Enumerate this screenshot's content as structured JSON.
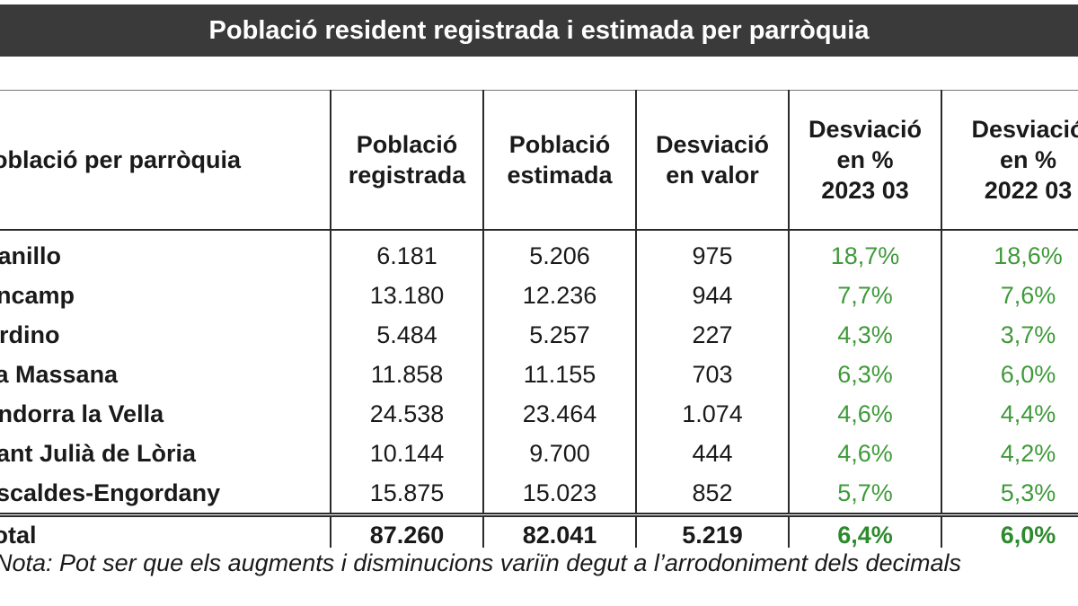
{
  "title": "Població resident registrada i estimada per parròquia",
  "chart_data": {
    "type": "table",
    "title": "Població resident registrada i estimada per parròquia",
    "columns": [
      "Població per parròquia",
      [
        "Població",
        "registrada"
      ],
      [
        "Població",
        "estimada"
      ],
      [
        "Desviació",
        "en valor"
      ],
      [
        "Desviació",
        "en %",
        "2023 03"
      ],
      [
        "Desviació",
        "en %",
        "2022 03"
      ]
    ],
    "rows": [
      [
        "Canillo",
        "6.181",
        "5.206",
        "975",
        "18,7%",
        "18,6%"
      ],
      [
        "Encamp",
        "13.180",
        "12.236",
        "944",
        "7,7%",
        "7,6%"
      ],
      [
        "Ordino",
        "5.484",
        "5.257",
        "227",
        "4,3%",
        "3,7%"
      ],
      [
        "La Massana",
        "11.858",
        "11.155",
        "703",
        "6,3%",
        "6,0%"
      ],
      [
        "Andorra la Vella",
        "24.538",
        "23.464",
        "1.074",
        "4,6%",
        "4,4%"
      ],
      [
        "Sant Julià de Lòria",
        "10.144",
        "9.700",
        "444",
        "4,6%",
        "4,2%"
      ],
      [
        "Escaldes-Engordany",
        "15.875",
        "15.023",
        "852",
        "5,7%",
        "5,3%"
      ]
    ],
    "total": [
      "Total",
      "87.260",
      "82.041",
      "5.219",
      "6,4%",
      "6,0%"
    ],
    "note": "Nota: Pot ser que els augments i disminucions variïn degut a l’arrodoniment dels decimals"
  },
  "colors": {
    "title_bg": "#3a3a3a",
    "percent_text": "#3f9a3a"
  }
}
